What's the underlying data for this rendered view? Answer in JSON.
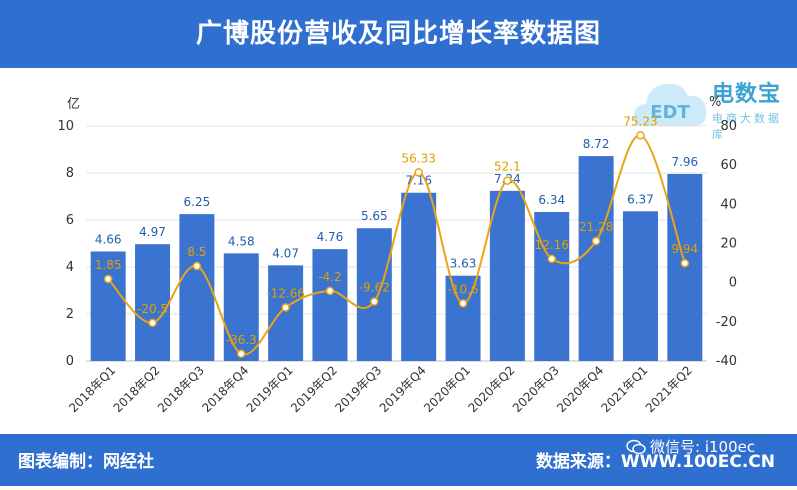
{
  "title": "广博股份营收及同比增长率数据图",
  "footer": {
    "left": "图表编制：网经社",
    "right": "数据来源：WWW.100EC.CN",
    "wechat": "微信号: i100ec"
  },
  "watermark": {
    "name": "电数宝",
    "sub": "电商大数据库",
    "badge": "EDT"
  },
  "colors": {
    "header": "#2f6fcf",
    "bar": "#3b73d1",
    "line": "#e8a514",
    "value_label": "#1f5fae",
    "pct_label": "#e0a100"
  },
  "chart_data": {
    "type": "bar",
    "title": "广博股份营收及同比增长率数据图",
    "categories": [
      "2018年Q1",
      "2018年Q2",
      "2018年Q3",
      "2018年Q4",
      "2019年Q1",
      "2019年Q2",
      "2019年Q3",
      "2019年Q4",
      "2020年Q1",
      "2020年Q2",
      "2020年Q3",
      "2020年Q4",
      "2021年Q1",
      "2021年Q2"
    ],
    "series": [
      {
        "name": "营收",
        "type": "bar",
        "unit": "亿",
        "axis": "left",
        "values": [
          4.66,
          4.97,
          6.25,
          4.58,
          4.07,
          4.76,
          5.65,
          7.16,
          3.63,
          7.24,
          6.34,
          8.72,
          6.37,
          7.96
        ]
      },
      {
        "name": "同比增长率",
        "type": "line",
        "unit": "%",
        "axis": "right",
        "values": [
          1.85,
          -20.5,
          8.5,
          -36.3,
          -12.66,
          -4.2,
          -9.62,
          56.33,
          -10.6,
          52.1,
          12.16,
          21.28,
          75.23,
          9.94
        ]
      }
    ],
    "ylabel": "亿",
    "ylim": [
      0,
      10
    ],
    "yticks": [
      0,
      2,
      4,
      6,
      8,
      10
    ],
    "y2label": "%",
    "y2lim": [
      -40,
      80
    ],
    "y2ticks": [
      -40,
      -20,
      0,
      20,
      40,
      60,
      80
    ]
  }
}
